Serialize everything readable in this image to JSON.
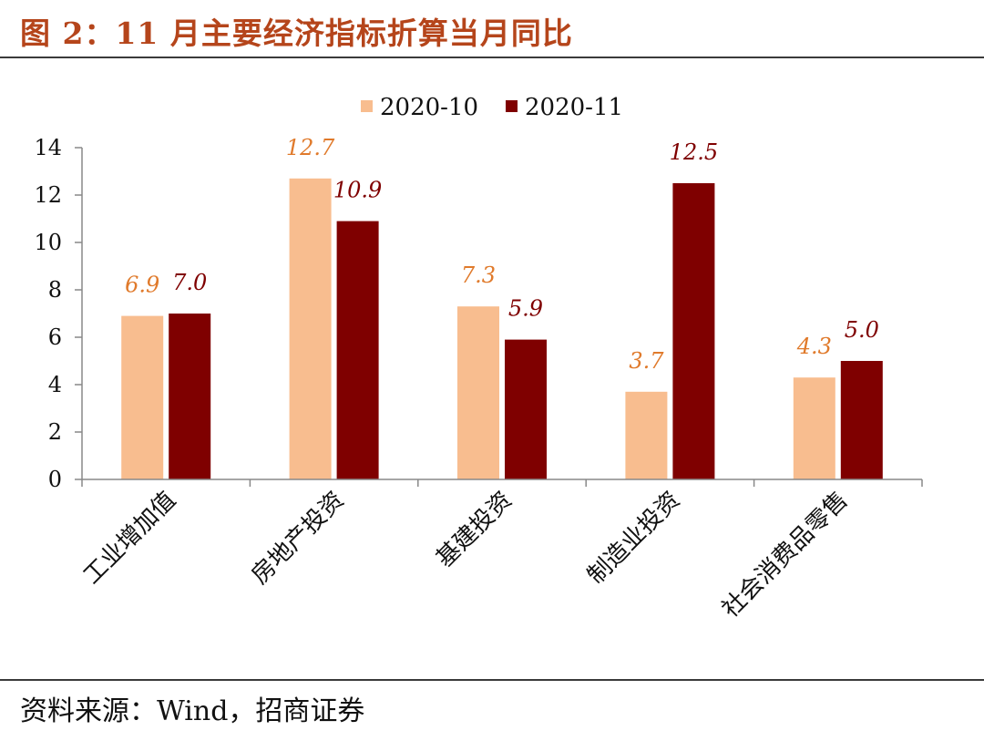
{
  "figure": {
    "title": "图 2：11 月主要经济指标折算当月同比",
    "source": "资料来源：Wind，招商证券"
  },
  "chart_data": {
    "type": "bar",
    "categories": [
      "工业增加值",
      "房地产投资",
      "基建投资",
      "制造业投资",
      "社会消费品零售"
    ],
    "series": [
      {
        "name": "2020-10",
        "values": [
          6.9,
          12.7,
          7.3,
          3.7,
          4.3
        ],
        "color": "#f8bd8f",
        "label_color": "#e07a2b"
      },
      {
        "name": "2020-11",
        "values": [
          7.0,
          10.9,
          5.9,
          12.5,
          5.0
        ],
        "color": "#7f0000",
        "label_color": "#7f0000"
      }
    ],
    "data_labels": [
      [
        "6.9",
        "12.7",
        "7.3",
        "3.7",
        "4.3"
      ],
      [
        "7.0",
        "10.9",
        "5.9",
        "12.5",
        "5.0"
      ]
    ],
    "ylim": [
      0,
      14
    ],
    "yticks": [
      0,
      2,
      4,
      6,
      8,
      10,
      12,
      14
    ],
    "xlabel": "",
    "ylabel": "",
    "grid": false,
    "legend_position": "top-center"
  }
}
